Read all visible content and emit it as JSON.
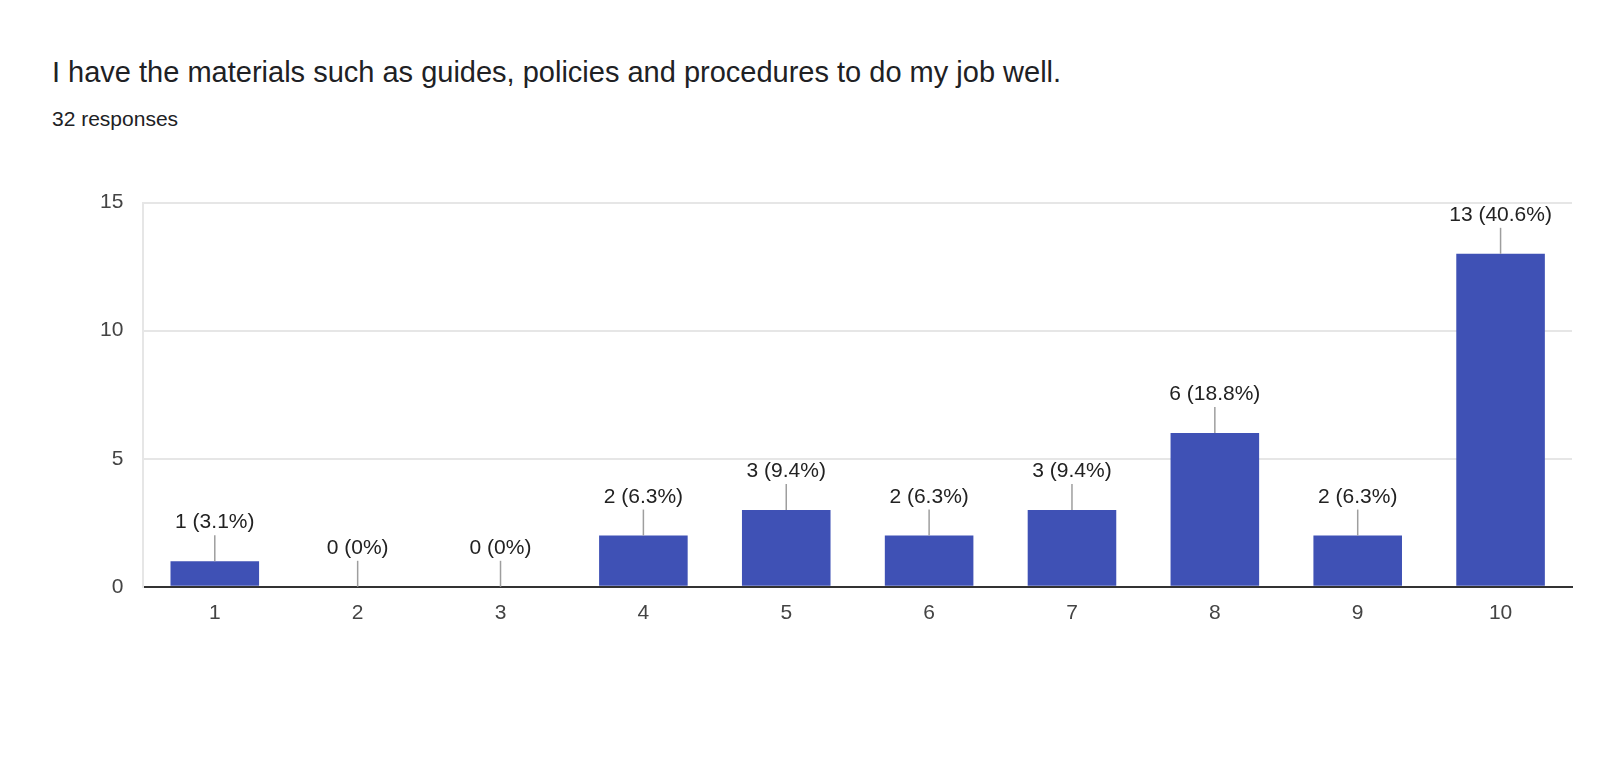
{
  "chart_data": {
    "type": "bar",
    "title": "I have the materials such as guides, policies and procedures to do my job well.",
    "subtitle": "32 responses",
    "categories": [
      "1",
      "2",
      "3",
      "4",
      "5",
      "6",
      "7",
      "8",
      "9",
      "10"
    ],
    "values": [
      1,
      0,
      0,
      2,
      3,
      2,
      3,
      6,
      2,
      13
    ],
    "value_labels": [
      "1 (3.1%)",
      "0 (0%)",
      "0 (0%)",
      "2 (6.3%)",
      "3 (9.4%)",
      "2 (6.3%)",
      "3 (9.4%)",
      "6 (18.8%)",
      "2 (6.3%)",
      "13 (40.6%)"
    ],
    "color": "#3f51b5",
    "ylim": [
      0,
      15
    ],
    "yticks": [
      0,
      5,
      10,
      15
    ],
    "grid": true,
    "data_labels": true
  }
}
